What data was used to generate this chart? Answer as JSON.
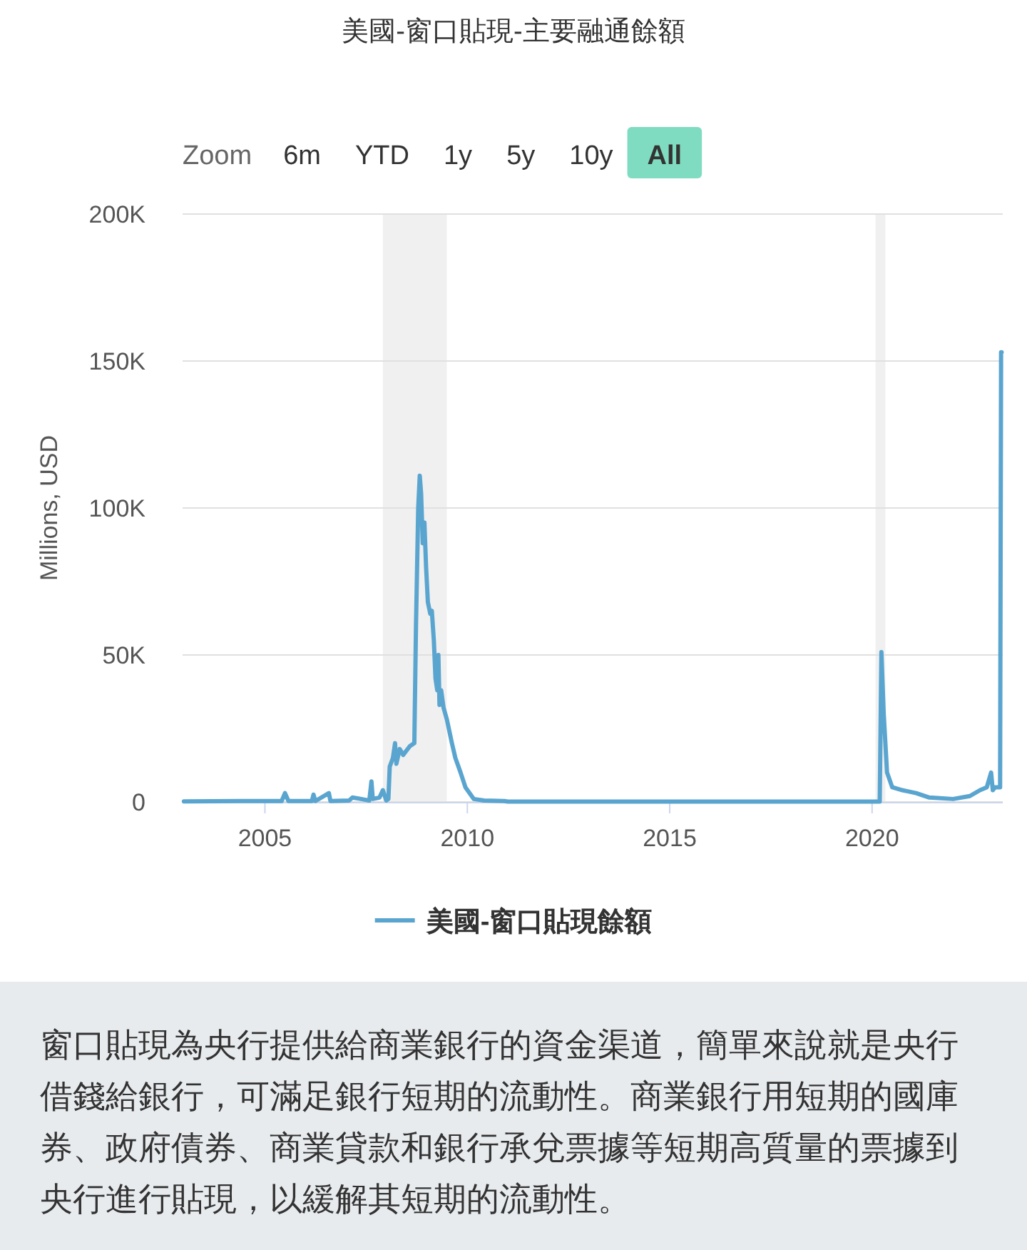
{
  "chart_data": {
    "type": "line",
    "title": "美國-窗口貼現-主要融通餘額",
    "ylabel": "Millions, USD",
    "annotations": [
      "Zoom",
      "6m",
      "YTD",
      "1y",
      "5y",
      "10y",
      "All",
      "窗口貼現為央行提供給商業銀行的資金渠道，簡單來說就是央行借錢給銀行，可滿足銀行短期的流動性。商業銀行用短期的國庫券、政府債券、商業貸款和銀行承兌票據等短期高質量的票據到央行進行貼現，以緩解其短期的流動性。"
    ],
    "xlim": [
      "2002-12-20",
      "2023-03-25"
    ],
    "xticks": [
      {
        "value": "2005-01-01",
        "label": "2005"
      },
      {
        "value": "2010-01-01",
        "label": "2010"
      },
      {
        "value": "2015-01-01",
        "label": "2015"
      },
      {
        "value": "2020-01-01",
        "label": "2020"
      }
    ],
    "ylim": [
      0,
      200000
    ],
    "yticks": [
      {
        "value": 0,
        "label": "0"
      },
      {
        "value": 50000,
        "label": "50K"
      },
      {
        "value": 100000,
        "label": "100K"
      },
      {
        "value": 150000,
        "label": "150K"
      },
      {
        "value": 200000,
        "label": "200K"
      }
    ],
    "grid": "y",
    "legend": "bottom",
    "marker": "none",
    "line_style": "solid",
    "bands": [
      {
        "axis": "x",
        "from": "2007-12-01",
        "to": "2009-06-30",
        "color": "#f0f0f0"
      },
      {
        "axis": "x",
        "from": "2020-02-01",
        "to": "2020-04-30",
        "color": "#f0f0f0"
      }
    ],
    "series": [
      {
        "name": "美國-窗口貼現餘額",
        "color": "#5aa5cf",
        "x": [
          "2003-01-01",
          "2004-06-01",
          "2005-06-01",
          "2005-07-01",
          "2005-08-01",
          "2006-03-01",
          "2006-03-15",
          "2006-04-01",
          "2006-08-01",
          "2006-08-15",
          "2007-02-01",
          "2007-03-01",
          "2007-08-01",
          "2007-08-20",
          "2007-09-01",
          "2007-11-01",
          "2007-12-01",
          "2008-01-01",
          "2008-01-20",
          "2008-02-01",
          "2008-03-01",
          "2008-03-20",
          "2008-04-01",
          "2008-05-01",
          "2008-06-01",
          "2008-08-01",
          "2008-09-10",
          "2008-09-25",
          "2008-10-15",
          "2008-10-29",
          "2008-11-10",
          "2008-11-25",
          "2008-12-10",
          "2008-12-25",
          "2009-01-10",
          "2009-02-01",
          "2009-02-15",
          "2009-03-05",
          "2009-03-20",
          "2009-04-05",
          "2009-04-15",
          "2009-04-25",
          "2009-05-10",
          "2009-06-01",
          "2009-07-01",
          "2009-08-15",
          "2009-09-15",
          "2009-11-01",
          "2009-12-15",
          "2010-03-01",
          "2010-06-01",
          "2010-12-01",
          "2011-01-01",
          "2019-06-01",
          "2020-03-10",
          "2020-03-25",
          "2020-04-15",
          "2020-05-15",
          "2020-07-01",
          "2020-10-01",
          "2021-02-01",
          "2021-06-01",
          "2022-01-01",
          "2022-06-01",
          "2022-09-01",
          "2022-11-01",
          "2022-12-10",
          "2022-12-25",
          "2023-01-15",
          "2023-03-01",
          "2023-03-10",
          "2023-03-15"
        ],
        "values": [
          200,
          300,
          300,
          3000,
          300,
          300,
          2500,
          300,
          3000,
          300,
          500,
          1500,
          500,
          7000,
          1000,
          1500,
          4000,
          500,
          1000,
          12000,
          15000,
          20000,
          13000,
          18000,
          16000,
          19000,
          20000,
          60000,
          100000,
          111000,
          105000,
          88000,
          95000,
          80000,
          68000,
          64000,
          65000,
          55000,
          42000,
          38000,
          50000,
          33000,
          38000,
          32000,
          28000,
          20000,
          15000,
          10000,
          5000,
          1000,
          500,
          300,
          100,
          100,
          100,
          51000,
          30000,
          10000,
          5000,
          4000,
          3000,
          1500,
          1000,
          2000,
          4000,
          5000,
          10000,
          4000,
          5000,
          5000,
          153000,
          153000
        ]
      }
    ]
  }
}
